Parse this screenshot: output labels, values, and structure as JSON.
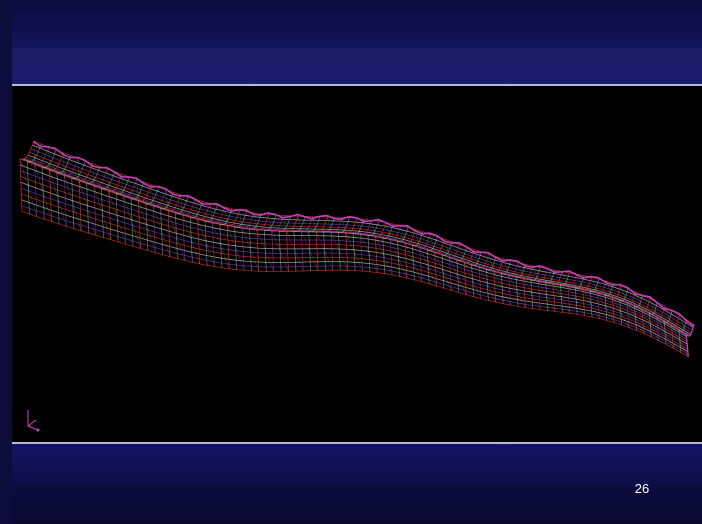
{
  "slide": {
    "page_number": "26"
  },
  "viewport": {
    "background": "#000000",
    "content": "wireframe-mesh",
    "colors": {
      "grid_red": "#e03020",
      "grid_magenta": "#d040d0",
      "grid_white": "#c8c8c8",
      "grid_purple": "#6a3cc0",
      "grid_green": "#4a8a4a"
    },
    "axis_icon": "axis-triad-icon"
  },
  "colors": {
    "band_dark": "#0b0b40",
    "band_mid": "#161668",
    "rule": "#b9b9d6"
  }
}
